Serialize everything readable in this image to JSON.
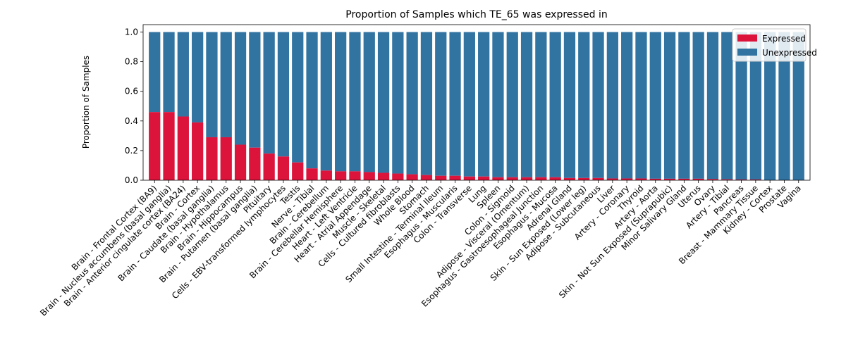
{
  "chart_data": {
    "type": "bar",
    "stacked": true,
    "title": "Proportion of Samples which TE_65 was expressed in",
    "xlabel": "",
    "ylabel": "Proportion of Samples",
    "ylim": [
      0,
      1.05
    ],
    "yticks": [
      "0.0",
      "0.2",
      "0.4",
      "0.6",
      "0.8",
      "1.0"
    ],
    "legend_position": "top-right",
    "categories": [
      "Brain - Frontal Cortex (BA9)",
      "Brain - Nucleus accumbens (basal ganglia)",
      "Brain - Anterior cingulate cortex (BA24)",
      "Brain - Cortex",
      "Brain - Caudate (basal ganglia)",
      "Brain - Hypothalamus",
      "Brain - Hippocampus",
      "Brain - Putamen (basal ganglia)",
      "Pituitary",
      "Cells - EBV-transformed lymphocytes",
      "Testis",
      "Nerve - Tibial",
      "Brain - Cerebellum",
      "Brain - Cerebellar Hemisphere",
      "Heart - Left Ventricle",
      "Heart - Atrial Appendage",
      "Muscle - Skeletal",
      "Cells - Cultured fibroblasts",
      "Whole Blood",
      "Stomach",
      "Small Intestine - Terminal Ileum",
      "Esophagus - Muscularis",
      "Colon - Transverse",
      "Lung",
      "Spleen",
      "Colon - Sigmoid",
      "Adipose - Visceral (Omentum)",
      "Esophagus - Gastroesophageal Junction",
      "Esophagus - Mucosa",
      "Adrenal Gland",
      "Skin - Sun Exposed (Lower leg)",
      "Adipose - Subcutaneous",
      "Liver",
      "Artery - Coronary",
      "Thyroid",
      "Artery - Aorta",
      "Skin - Not Sun Exposed (Suprapubic)",
      "Minor Salivary Gland",
      "Uterus",
      "Ovary",
      "Artery - Tibial",
      "Pancreas",
      "Breast - Mammary Tissue",
      "Kidney - Cortex",
      "Prostate",
      "Vagina"
    ],
    "series": [
      {
        "name": "Expressed",
        "color": "#dc143c",
        "values": [
          0.46,
          0.46,
          0.43,
          0.39,
          0.29,
          0.29,
          0.24,
          0.22,
          0.18,
          0.16,
          0.12,
          0.08,
          0.065,
          0.06,
          0.06,
          0.055,
          0.05,
          0.045,
          0.04,
          0.035,
          0.03,
          0.03,
          0.025,
          0.025,
          0.02,
          0.02,
          0.02,
          0.02,
          0.02,
          0.015,
          0.015,
          0.015,
          0.012,
          0.012,
          0.012,
          0.01,
          0.01,
          0.01,
          0.01,
          0.008,
          0.006,
          0.005,
          0.005,
          0.0,
          0.0,
          0.0
        ]
      },
      {
        "name": "Unexpressed",
        "color": "#3274a1",
        "values": [
          0.54,
          0.54,
          0.57,
          0.61,
          0.71,
          0.71,
          0.76,
          0.78,
          0.82,
          0.84,
          0.88,
          0.92,
          0.935,
          0.94,
          0.94,
          0.945,
          0.95,
          0.955,
          0.96,
          0.965,
          0.97,
          0.97,
          0.975,
          0.975,
          0.98,
          0.98,
          0.98,
          0.98,
          0.98,
          0.985,
          0.985,
          0.985,
          0.988,
          0.988,
          0.988,
          0.99,
          0.99,
          0.99,
          0.99,
          0.992,
          0.994,
          0.995,
          0.995,
          1.0,
          1.0,
          1.0
        ]
      }
    ]
  }
}
